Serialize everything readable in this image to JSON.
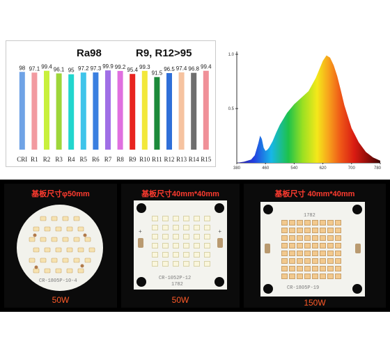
{
  "cri_chart": {
    "title_left": "Ra98",
    "title_right": "R9, R12>95",
    "chart_data": {
      "type": "bar",
      "categories": [
        "CRI",
        "R1",
        "R2",
        "R3",
        "R4",
        "R5",
        "R6",
        "R7",
        "R8",
        "R9",
        "R10",
        "R11",
        "R12",
        "R13",
        "R14",
        "R15"
      ],
      "values": [
        98,
        97.1,
        99.4,
        96.1,
        95,
        97.2,
        97.3,
        99.9,
        99.2,
        95.4,
        99.3,
        91.5,
        96.5,
        97.4,
        96.8,
        99.4
      ],
      "value_labels": [
        "98",
        "97.1",
        "99.4",
        "96.1",
        "95",
        "97.2",
        "97.3",
        "99.9",
        "99.2",
        "95.4",
        "99.3",
        "91.5",
        "96.5",
        "97.4",
        "96.8",
        "99.4"
      ],
      "colors": [
        "#6fa3e6",
        "#f29aa0",
        "#c8f03c",
        "#9ed63a",
        "#22d6ce",
        "#3fc4ea",
        "#3a7fe0",
        "#a06fe6",
        "#e070e0",
        "#e8241f",
        "#f2e83a",
        "#1c8a3a",
        "#2f6fd8",
        "#f6c3a0",
        "#6e6e6e",
        "#f09098"
      ],
      "ylim": [
        0,
        100
      ]
    }
  },
  "spectrum": {
    "chart_data": {
      "type": "area",
      "y_ticks": [
        "1.0",
        "0.5"
      ],
      "x_ticks": [
        "380",
        "460",
        "540",
        "620",
        "700",
        "780"
      ],
      "x_range": [
        380,
        780
      ],
      "y_range": [
        0,
        1
      ],
      "x": [
        380,
        400,
        420,
        430,
        440,
        445,
        450,
        455,
        460,
        465,
        470,
        480,
        490,
        500,
        520,
        540,
        560,
        580,
        600,
        620,
        630,
        640,
        650,
        660,
        670,
        680,
        700,
        720,
        740,
        760,
        780
      ],
      "y": [
        0,
        0.01,
        0.03,
        0.07,
        0.18,
        0.25,
        0.22,
        0.14,
        0.11,
        0.12,
        0.14,
        0.2,
        0.28,
        0.35,
        0.46,
        0.54,
        0.6,
        0.66,
        0.78,
        0.94,
        0.99,
        0.97,
        0.9,
        0.8,
        0.67,
        0.53,
        0.32,
        0.19,
        0.1,
        0.05,
        0.02
      ]
    }
  },
  "photos": [
    {
      "caption": "基板尺寸φ50mm",
      "watt": "50W",
      "silk": "CR-1805P-10-4"
    },
    {
      "caption": "基板尺寸40mm*40mm",
      "watt": "50W",
      "silk": "CR-1052P-12",
      "silk2": "1782"
    },
    {
      "caption": "基板尺寸 40mm*40mm",
      "watt": "150W",
      "silk": "CR-1805P-19",
      "silk2": "1782"
    }
  ],
  "colors": {
    "caption_red": "#ff3b2f",
    "watt_orange": "#ff5a28",
    "led_warm": "#f2c98e",
    "led_neutral": "#faf6dc"
  }
}
